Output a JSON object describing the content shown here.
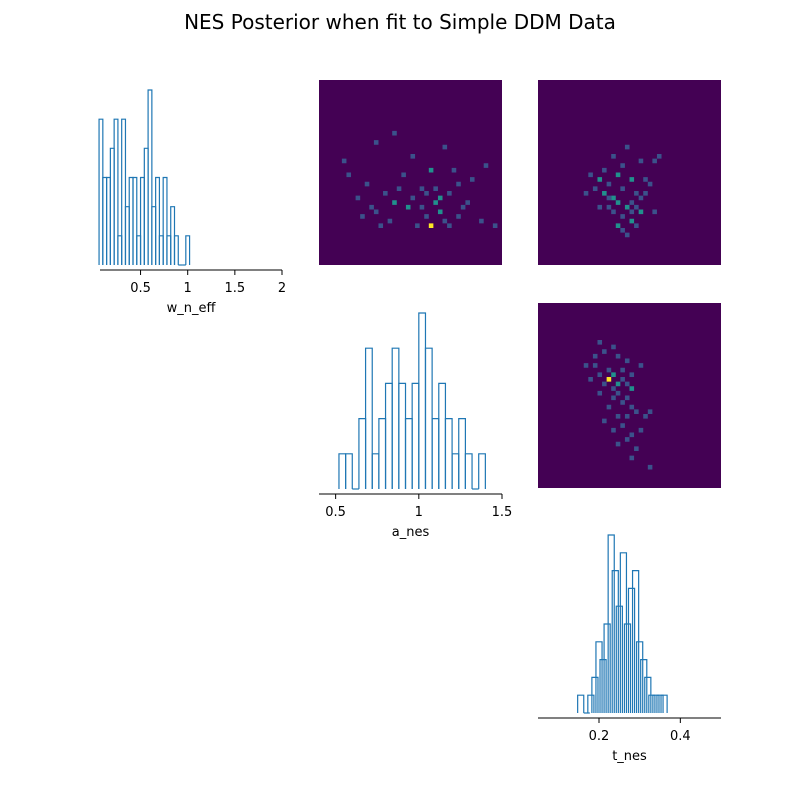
{
  "title": "NES Posterior when fit to Simple DDM Data",
  "colors": {
    "hist_line": "#1f77b4",
    "heat_bg": "#440154",
    "heat_mid": "#21908d",
    "heat_low": "#3b528b",
    "heat_high": "#fde725"
  },
  "chart_data": [
    {
      "type": "histogram",
      "variable": "w_n_eff",
      "xlabel": "w_n_eff",
      "xlim": [
        0.07,
        2.0
      ],
      "xticks": [
        0.5,
        1,
        1.5,
        2
      ],
      "xtick_labels": [
        "0.5",
        "1",
        "1.5",
        "2"
      ],
      "bins": [
        {
          "x": 0.08,
          "count": 5
        },
        {
          "x": 0.12,
          "count": 3
        },
        {
          "x": 0.16,
          "count": 3
        },
        {
          "x": 0.2,
          "count": 4
        },
        {
          "x": 0.24,
          "count": 5
        },
        {
          "x": 0.28,
          "count": 1
        },
        {
          "x": 0.32,
          "count": 5
        },
        {
          "x": 0.36,
          "count": 2
        },
        {
          "x": 0.4,
          "count": 3
        },
        {
          "x": 0.44,
          "count": 3
        },
        {
          "x": 0.48,
          "count": 1
        },
        {
          "x": 0.52,
          "count": 3
        },
        {
          "x": 0.56,
          "count": 4
        },
        {
          "x": 0.6,
          "count": 6
        },
        {
          "x": 0.64,
          "count": 2
        },
        {
          "x": 0.68,
          "count": 3
        },
        {
          "x": 0.72,
          "count": 1
        },
        {
          "x": 0.76,
          "count": 3
        },
        {
          "x": 0.8,
          "count": 1
        },
        {
          "x": 0.84,
          "count": 2
        },
        {
          "x": 0.88,
          "count": 1
        },
        {
          "x": 0.92,
          "count": 0
        },
        {
          "x": 0.96,
          "count": 0
        },
        {
          "x": 1.0,
          "count": 1
        }
      ]
    },
    {
      "type": "histogram",
      "variable": "a_nes",
      "xlabel": "a_nes",
      "xlim": [
        0.4,
        1.5
      ],
      "xticks": [
        0.5,
        1,
        1.5
      ],
      "xtick_labels": [
        "0.5",
        "1",
        "1.5"
      ],
      "bins": [
        {
          "x": 0.54,
          "count": 1
        },
        {
          "x": 0.58,
          "count": 1
        },
        {
          "x": 0.62,
          "count": 0
        },
        {
          "x": 0.66,
          "count": 2
        },
        {
          "x": 0.7,
          "count": 4
        },
        {
          "x": 0.74,
          "count": 1
        },
        {
          "x": 0.78,
          "count": 2
        },
        {
          "x": 0.82,
          "count": 3
        },
        {
          "x": 0.86,
          "count": 4
        },
        {
          "x": 0.9,
          "count": 3
        },
        {
          "x": 0.94,
          "count": 2
        },
        {
          "x": 0.98,
          "count": 3
        },
        {
          "x": 1.02,
          "count": 5
        },
        {
          "x": 1.06,
          "count": 4
        },
        {
          "x": 1.1,
          "count": 2
        },
        {
          "x": 1.14,
          "count": 3
        },
        {
          "x": 1.18,
          "count": 2
        },
        {
          "x": 1.22,
          "count": 1
        },
        {
          "x": 1.26,
          "count": 2
        },
        {
          "x": 1.3,
          "count": 1
        },
        {
          "x": 1.34,
          "count": 0
        },
        {
          "x": 1.38,
          "count": 1
        }
      ]
    },
    {
      "type": "histogram",
      "variable": "t_nes",
      "xlabel": "t_nes",
      "xlim": [
        0.05,
        0.5
      ],
      "xticks": [
        0.2,
        0.4
      ],
      "xtick_labels": [
        "0.2",
        "0.4"
      ],
      "bins": [
        {
          "x": 0.155,
          "count": 1
        },
        {
          "x": 0.17,
          "count": 0
        },
        {
          "x": 0.18,
          "count": 1
        },
        {
          "x": 0.19,
          "count": 2
        },
        {
          "x": 0.2,
          "count": 4
        },
        {
          "x": 0.21,
          "count": 3
        },
        {
          "x": 0.22,
          "count": 5
        },
        {
          "x": 0.23,
          "count": 10
        },
        {
          "x": 0.24,
          "count": 8
        },
        {
          "x": 0.25,
          "count": 6
        },
        {
          "x": 0.26,
          "count": 9
        },
        {
          "x": 0.27,
          "count": 5
        },
        {
          "x": 0.28,
          "count": 7
        },
        {
          "x": 0.29,
          "count": 8
        },
        {
          "x": 0.3,
          "count": 4
        },
        {
          "x": 0.31,
          "count": 3
        },
        {
          "x": 0.32,
          "count": 2
        },
        {
          "x": 0.33,
          "count": 1
        },
        {
          "x": 0.34,
          "count": 1
        },
        {
          "x": 0.35,
          "count": 1
        },
        {
          "x": 0.36,
          "count": 1
        }
      ]
    },
    {
      "type": "heatmap",
      "x_variable": "a_nes",
      "y_variable": "w_n_eff",
      "grid": [
        40,
        40
      ],
      "cells": [
        [
          5,
          17,
          1
        ],
        [
          12,
          13,
          1
        ],
        [
          16,
          11,
          1
        ],
        [
          20,
          16,
          1
        ],
        [
          22,
          23,
          1
        ],
        [
          27,
          14,
          1
        ],
        [
          6,
          20,
          1
        ],
        [
          10,
          22,
          1
        ],
        [
          14,
          24,
          1
        ],
        [
          18,
          20,
          1
        ],
        [
          24,
          19,
          2
        ],
        [
          26,
          25,
          3
        ],
        [
          30,
          22,
          1
        ],
        [
          33,
          21,
          1
        ],
        [
          36,
          18,
          1
        ],
        [
          19,
          27,
          2
        ],
        [
          23,
          29,
          1
        ],
        [
          25,
          26,
          2
        ],
        [
          28,
          24,
          1
        ],
        [
          31,
          27,
          1
        ],
        [
          35,
          30,
          1
        ],
        [
          8,
          25,
          1
        ],
        [
          12,
          28,
          1
        ],
        [
          15,
          30,
          1
        ],
        [
          21,
          31,
          1
        ],
        [
          24,
          31,
          4
        ],
        [
          27,
          30,
          1
        ],
        [
          32,
          26,
          1
        ],
        [
          38,
          31,
          1
        ],
        [
          17,
          23,
          1
        ],
        [
          20,
          25,
          1
        ],
        [
          29,
          19,
          1
        ],
        [
          11,
          27,
          1
        ],
        [
          16,
          26,
          2
        ],
        [
          22,
          27,
          1
        ],
        [
          26,
          28,
          2
        ],
        [
          30,
          29,
          1
        ],
        [
          9,
          29,
          1
        ],
        [
          13,
          31,
          1
        ],
        [
          23,
          24,
          1
        ],
        [
          25,
          23,
          1
        ],
        [
          28,
          31,
          1
        ]
      ]
    },
    {
      "type": "heatmap",
      "x_variable": "t_nes",
      "y_variable": "w_n_eff",
      "grid": [
        40,
        40
      ],
      "cells": [
        [
          12,
          23,
          1
        ],
        [
          13,
          21,
          2
        ],
        [
          14,
          19,
          1
        ],
        [
          15,
          22,
          1
        ],
        [
          16,
          25,
          3
        ],
        [
          17,
          20,
          2
        ],
        [
          18,
          18,
          1
        ],
        [
          19,
          27,
          2
        ],
        [
          20,
          26,
          1
        ],
        [
          21,
          24,
          1
        ],
        [
          22,
          28,
          2
        ],
        [
          23,
          21,
          1
        ],
        [
          18,
          29,
          1
        ],
        [
          20,
          30,
          2
        ],
        [
          16,
          28,
          1
        ],
        [
          19,
          33,
          1
        ],
        [
          21,
          31,
          1
        ],
        [
          17,
          31,
          2
        ],
        [
          15,
          27,
          1
        ],
        [
          23,
          24,
          1
        ],
        [
          24,
          22,
          1
        ],
        [
          25,
          17,
          1
        ],
        [
          10,
          24,
          1
        ],
        [
          11,
          20,
          1
        ],
        [
          14,
          24,
          2
        ],
        [
          18,
          23,
          1
        ],
        [
          20,
          21,
          2
        ],
        [
          22,
          17,
          1
        ],
        [
          16,
          16,
          1
        ],
        [
          19,
          14,
          1
        ],
        [
          26,
          16,
          1
        ],
        [
          13,
          27,
          1
        ],
        [
          17,
          26,
          2
        ],
        [
          21,
          27,
          1
        ],
        [
          25,
          28,
          1
        ],
        [
          18,
          32,
          1
        ],
        [
          15,
          25,
          1
        ],
        [
          20,
          28,
          1
        ],
        [
          22,
          25,
          1
        ]
      ]
    },
    {
      "type": "heatmap",
      "x_variable": "t_nes",
      "y_variable": "a_nes",
      "grid": [
        40,
        40
      ],
      "cells": [
        [
          13,
          8,
          1
        ],
        [
          14,
          10,
          1
        ],
        [
          12,
          11,
          1
        ],
        [
          16,
          9,
          1
        ],
        [
          17,
          11,
          1
        ],
        [
          19,
          12,
          1
        ],
        [
          10,
          13,
          1
        ],
        [
          12,
          13,
          1
        ],
        [
          15,
          14,
          1
        ],
        [
          16,
          15,
          2
        ],
        [
          18,
          16,
          1
        ],
        [
          20,
          15,
          1
        ],
        [
          22,
          13,
          1
        ],
        [
          17,
          17,
          2
        ],
        [
          19,
          17,
          1
        ],
        [
          16,
          18,
          1
        ],
        [
          20,
          18,
          2
        ],
        [
          15,
          16,
          4
        ],
        [
          18,
          14,
          1
        ],
        [
          14,
          17,
          1
        ],
        [
          13,
          19,
          1
        ],
        [
          16,
          20,
          1
        ],
        [
          18,
          21,
          1
        ],
        [
          20,
          22,
          1
        ],
        [
          15,
          22,
          1
        ],
        [
          17,
          24,
          1
        ],
        [
          19,
          24,
          1
        ],
        [
          21,
          23,
          1
        ],
        [
          23,
          24,
          1
        ],
        [
          24,
          23,
          1
        ],
        [
          14,
          25,
          1
        ],
        [
          16,
          27,
          1
        ],
        [
          18,
          26,
          1
        ],
        [
          20,
          28,
          1
        ],
        [
          22,
          27,
          1
        ],
        [
          19,
          29,
          1
        ],
        [
          21,
          31,
          1
        ],
        [
          17,
          30,
          1
        ],
        [
          20,
          33,
          1
        ],
        [
          24,
          35,
          1
        ],
        [
          13,
          15,
          1
        ],
        [
          11,
          16,
          1
        ],
        [
          17,
          19,
          1
        ],
        [
          19,
          20,
          1
        ]
      ]
    }
  ]
}
